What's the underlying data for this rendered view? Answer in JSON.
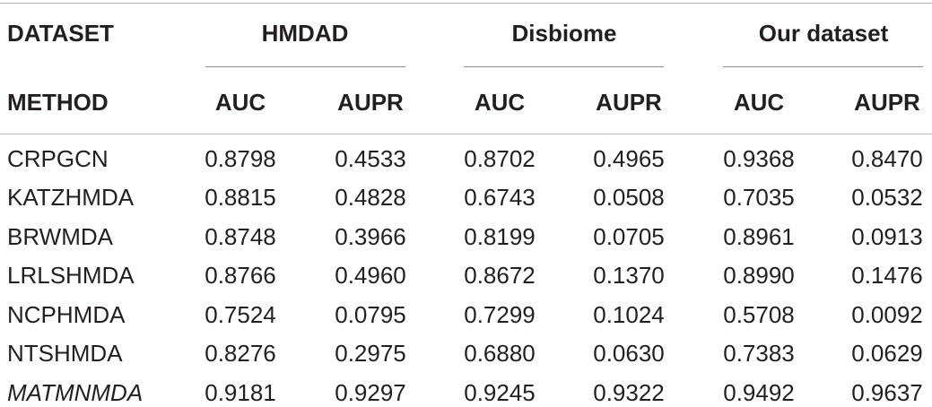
{
  "table": {
    "header_row1": {
      "dataset_label": "DATASET",
      "groups": [
        "HMDAD",
        "Disbiome",
        "Our dataset"
      ]
    },
    "header_row2": {
      "method_label": "METHOD",
      "metrics": [
        "AUC",
        "AUPR",
        "AUC",
        "AUPR",
        "AUC",
        "AUPR"
      ]
    },
    "rows": [
      {
        "method": "CRPGCN",
        "italic": false,
        "values": [
          "0.8798",
          "0.4533",
          "0.8702",
          "0.4965",
          "0.9368",
          "0.8470"
        ]
      },
      {
        "method": "KATZHMDA",
        "italic": false,
        "values": [
          "0.8815",
          "0.4828",
          "0.6743",
          "0.0508",
          "0.7035",
          "0.0532"
        ]
      },
      {
        "method": "BRWMDA",
        "italic": false,
        "values": [
          "0.8748",
          "0.3966",
          "0.8199",
          "0.0705",
          "0.8961",
          "0.0913"
        ]
      },
      {
        "method": "LRLSHMDA",
        "italic": false,
        "values": [
          "0.8766",
          "0.4960",
          "0.8672",
          "0.1370",
          "0.8990",
          "0.1476"
        ]
      },
      {
        "method": "NCPHMDA",
        "italic": false,
        "values": [
          "0.7524",
          "0.0795",
          "0.7299",
          "0.1024",
          "0.5708",
          "0.0092"
        ]
      },
      {
        "method": "NTSHMDA",
        "italic": false,
        "values": [
          "0.8276",
          "0.2975",
          "0.6880",
          "0.0630",
          "0.7383",
          "0.0629"
        ]
      },
      {
        "method": "MATMNMDA",
        "italic": true,
        "values": [
          "0.9181",
          "0.9297",
          "0.9245",
          "0.9322",
          "0.9492",
          "0.9637"
        ]
      }
    ]
  }
}
